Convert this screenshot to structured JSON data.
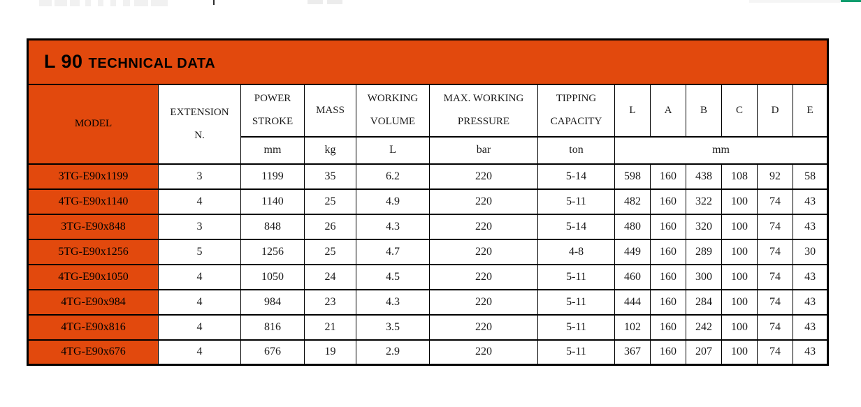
{
  "page": {
    "colors": {
      "accent_orange": "#e2490d",
      "remnant_green": "#0f9d6e",
      "border_black": "#000000"
    }
  },
  "table": {
    "title": "L 90",
    "subtitle": "TECHNICAL DATA",
    "header": {
      "model": "MODEL",
      "extension_line1": "EXTENSION",
      "extension_line2": "N.",
      "power_stroke_line1": "POWER",
      "power_stroke_line2": "STROKE",
      "mass": "MASS",
      "working_volume_line1": "WORKING",
      "working_volume_line2": "VOLUME",
      "max_pressure_line1": "MAX. WORKING",
      "max_pressure_line2": "PRESSURE",
      "tipping_line1": "TIPPING",
      "tipping_line2": "CAPACITY",
      "dims": [
        "L",
        "A",
        "B",
        "C",
        "D",
        "E"
      ]
    },
    "units": {
      "power_stroke": "mm",
      "mass": "kg",
      "working_volume": "L",
      "max_pressure": "bar",
      "tipping": "ton",
      "dims": "mm"
    },
    "rows": [
      [
        "3TG-E90x1199",
        "3",
        "1199",
        "35",
        "6.2",
        "220",
        "5-14",
        "598",
        "160",
        "438",
        "108",
        "92",
        "58"
      ],
      [
        "4TG-E90x1140",
        "4",
        "1140",
        "25",
        "4.9",
        "220",
        "5-11",
        "482",
        "160",
        "322",
        "100",
        "74",
        "43"
      ],
      [
        "3TG-E90x848",
        "3",
        "848",
        "26",
        "4.3",
        "220",
        "5-14",
        "480",
        "160",
        "320",
        "100",
        "74",
        "43"
      ],
      [
        "5TG-E90x1256",
        "5",
        "1256",
        "25",
        "4.7",
        "220",
        "4-8",
        "449",
        "160",
        "289",
        "100",
        "74",
        "30"
      ],
      [
        "4TG-E90x1050",
        "4",
        "1050",
        "24",
        "4.5",
        "220",
        "5-11",
        "460",
        "160",
        "300",
        "100",
        "74",
        "43"
      ],
      [
        "4TG-E90x984",
        "4",
        "984",
        "23",
        "4.3",
        "220",
        "5-11",
        "444",
        "160",
        "284",
        "100",
        "74",
        "43"
      ],
      [
        "4TG-E90x816",
        "4",
        "816",
        "21",
        "3.5",
        "220",
        "5-11",
        "102",
        "160",
        "242",
        "100",
        "74",
        "43"
      ],
      [
        "4TG-E90x676",
        "4",
        "676",
        "19",
        "2.9",
        "220",
        "5-11",
        "367",
        "160",
        "207",
        "100",
        "74",
        "43"
      ]
    ]
  }
}
